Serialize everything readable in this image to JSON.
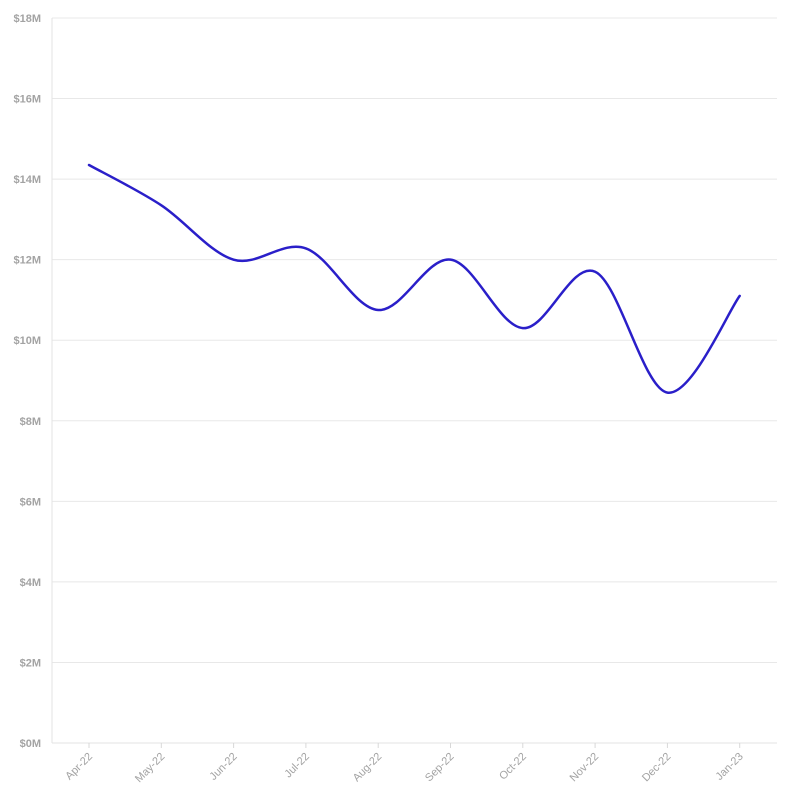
{
  "chart_data": {
    "type": "line",
    "title": "",
    "xlabel": "",
    "ylabel": "",
    "categories": [
      "Apr-22",
      "May-22",
      "Jun-22",
      "Jul-22",
      "Aug-22",
      "Sep-22",
      "Oct-22",
      "Nov-22",
      "Dec-22",
      "Jan-23"
    ],
    "series": [
      {
        "values": [
          14.35,
          13.35,
          12.0,
          12.28,
          10.75,
          12.0,
          10.3,
          11.7,
          8.7,
          11.1
        ]
      }
    ],
    "ylim": [
      0,
      18
    ],
    "yticks": [
      0,
      2,
      4,
      6,
      8,
      10,
      12,
      14,
      16,
      18
    ],
    "ytick_labels": [
      "$0M",
      "$2M",
      "$4M",
      "$6M",
      "$8M",
      "$10M",
      "$12M",
      "$14M",
      "$16M",
      "$18M"
    ],
    "grid": true,
    "legend": "none",
    "colors": {
      "series": "#2a1fc9",
      "grid": "#e8e8e8",
      "tick_text": "#a3a3a3"
    }
  }
}
